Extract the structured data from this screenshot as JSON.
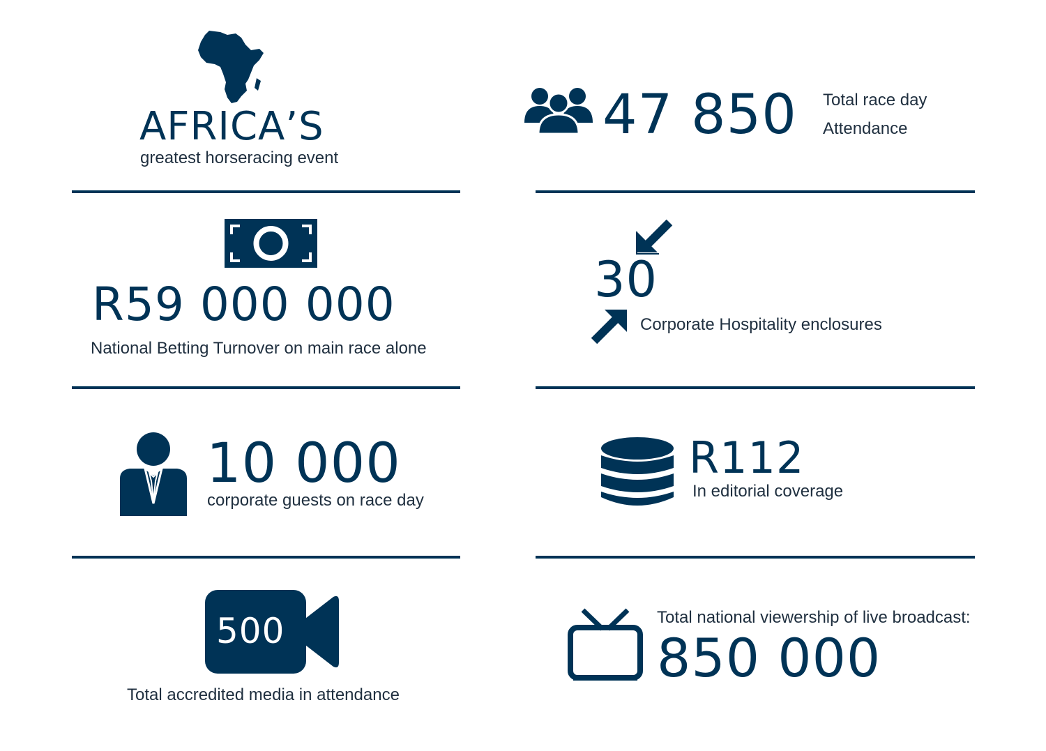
{
  "colors": {
    "navy": "#003356",
    "text": "#1f2f3f",
    "background": "#ffffff"
  },
  "headline": {
    "title": "AFRICA’S",
    "subtitle": "greatest horseracing event",
    "icon": "africa-map-icon"
  },
  "attendance": {
    "value": "47 850",
    "label_line1": "Total race day",
    "label_line2": "Attendance",
    "icon": "people-group-icon"
  },
  "betting": {
    "value": "R59 000 000",
    "label": "National Betting Turnover on main race alone",
    "icon": "banknote-icon"
  },
  "hospitality": {
    "value": "30",
    "label": "Corporate Hospitality enclosures",
    "icon": "collapse-arrows-icon"
  },
  "guests": {
    "value": "10 000",
    "label": "corporate guests on race day",
    "icon": "businessman-icon"
  },
  "editorial": {
    "value": "R112",
    "label": "In editorial coverage",
    "icon": "coin-stack-icon"
  },
  "media": {
    "value": "500",
    "label": "Total accredited media in attendance",
    "icon": "video-camera-icon"
  },
  "broadcast": {
    "label": "Total national viewership of live broadcast:",
    "value": "850 000",
    "icon": "television-icon"
  }
}
